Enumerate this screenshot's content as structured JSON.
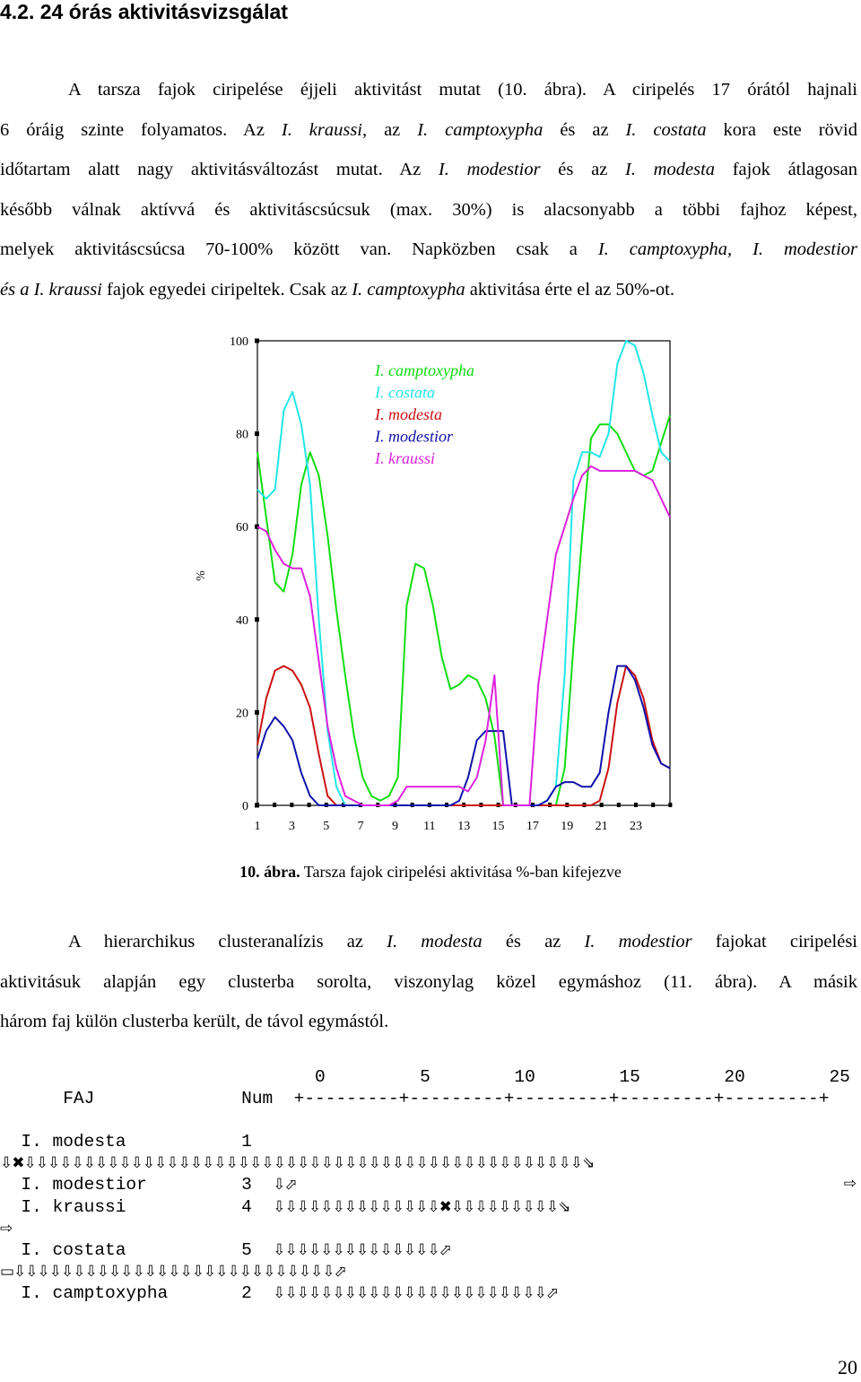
{
  "heading": "4.2. 24 órás aktivitásvizsgálat",
  "para1": [
    [
      {
        "t": "A tarsza fajok ciripelése éjjeli aktivitást mutat (10. ábra). A ciripelés 17 órától hajnali"
      }
    ],
    [
      {
        "t": "6 óráig szinte folyamatos. Az "
      },
      {
        "t": "I. kraussi",
        "i": true
      },
      {
        "t": ", az "
      },
      {
        "t": "I. camptoxypha",
        "i": true
      },
      {
        "t": " és az "
      },
      {
        "t": "I. costata",
        "i": true
      },
      {
        "t": " kora este rövid"
      }
    ],
    [
      {
        "t": "időtartam alatt nagy aktivitásváltozást mutat. Az "
      },
      {
        "t": "I. modestior",
        "i": true
      },
      {
        "t": " és az "
      },
      {
        "t": "I. modesta",
        "i": true
      },
      {
        "t": " fajok átlagosan"
      }
    ],
    [
      {
        "t": "később válnak aktívvá és aktivitáscsúcsuk (max. 30%) is alacsonyabb a többi fajhoz képest,"
      }
    ],
    [
      {
        "t": "melyek aktivitáscsúcsa 70-100% között van.  Napközben csak a "
      },
      {
        "t": "I. camptoxypha, I. modestior",
        "i": true
      }
    ],
    [
      {
        "t": "és a I. kraussi",
        "i": true
      },
      {
        "t": " fajok egyedei ciripeltek. Csak az "
      },
      {
        "t": "I. camptoxypha",
        "i": true
      },
      {
        "t": " aktivitása érte el az 50%-ot."
      }
    ]
  ],
  "chart_data": {
    "type": "line",
    "ylabel": "%",
    "ylim": [
      0,
      100
    ],
    "yticks": [
      "0",
      "20",
      "40",
      "60",
      "80",
      "100"
    ],
    "xticks": [
      "1",
      "3",
      "5",
      "7",
      "9",
      "11",
      "13",
      "15",
      "17",
      "19",
      "21",
      "23"
    ],
    "x": [
      0,
      0.5,
      1,
      1.5,
      2,
      2.5,
      3,
      3.5,
      4,
      4.5,
      5,
      5.5,
      6,
      6.5,
      7,
      7.5,
      8,
      8.5,
      9,
      9.5,
      10,
      10.5,
      11,
      11.5,
      12,
      12.5,
      13,
      13.5,
      14,
      14.5,
      15,
      15.5,
      16,
      16.5,
      17,
      17.5,
      18,
      18.5,
      19,
      19.5,
      20,
      20.5,
      21,
      21.5,
      22,
      22.5,
      23,
      23.5
    ],
    "series": [
      {
        "name": "I. camptoxypha",
        "color": "#11dd11",
        "values": [
          76,
          62,
          48,
          46,
          54,
          69,
          76,
          71,
          58,
          42,
          28,
          15,
          6,
          2,
          1,
          2,
          6,
          43,
          52,
          51,
          43,
          32,
          25,
          26,
          28,
          27,
          23,
          15,
          0,
          0,
          0,
          0,
          0,
          0,
          0,
          8,
          34,
          58,
          79,
          82,
          82,
          80,
          76,
          72,
          71,
          72,
          78,
          84
        ]
      },
      {
        "name": "I. costata",
        "color": "#22e6e6",
        "values": [
          68,
          66,
          68,
          85,
          89,
          82,
          69,
          40,
          16,
          4,
          0,
          0,
          0,
          0,
          0,
          0,
          0,
          0,
          0,
          0,
          0,
          0,
          0,
          0,
          0,
          0,
          0,
          0,
          0,
          0,
          0,
          0,
          0,
          1,
          4,
          28,
          70,
          76,
          76,
          75,
          80,
          95,
          100,
          99,
          93,
          84,
          76,
          74
        ]
      },
      {
        "name": "I. modesta",
        "color": "#cc1111",
        "values": [
          13,
          23,
          29,
          30,
          29,
          26,
          21,
          11,
          2,
          0,
          0,
          0,
          0,
          0,
          0,
          0,
          0,
          0,
          0,
          0,
          0,
          0,
          0,
          0,
          0,
          0,
          0,
          0,
          0,
          0,
          0,
          0,
          0,
          0,
          0,
          0,
          0,
          0,
          0,
          1,
          8,
          22,
          30,
          28,
          23,
          14,
          9,
          8
        ]
      },
      {
        "name": "I. modestior",
        "color": "#1111aa",
        "values": [
          10,
          16,
          19,
          17,
          14,
          7,
          2,
          0,
          0,
          0,
          0,
          0,
          0,
          0,
          0,
          0,
          0,
          0,
          0,
          0,
          0,
          0,
          0,
          1,
          6,
          14,
          16,
          16,
          16,
          0,
          0,
          0,
          0,
          1,
          4,
          5,
          5,
          4,
          4,
          7,
          20,
          30,
          30,
          27,
          21,
          13,
          9,
          8
        ]
      },
      {
        "name": "I. kraussi",
        "color": "#dd22dd",
        "values": [
          60,
          59,
          55,
          52,
          51,
          51,
          45,
          31,
          17,
          8,
          2,
          1,
          0,
          0,
          0,
          0,
          1,
          4,
          4,
          4,
          4,
          4,
          4,
          4,
          3,
          6,
          14,
          28,
          0,
          0,
          0,
          0,
          26,
          40,
          54,
          60,
          66,
          71,
          73,
          72,
          72,
          72,
          72,
          72,
          71,
          70,
          66,
          62
        ]
      }
    ]
  },
  "caption": {
    "label": "10. ábra.",
    "text": " Tarsza fajok ciripelési aktivitása %-ban kifejezve"
  },
  "para2": [
    [
      {
        "t": "A hierarchikus clusteranalízis az "
      },
      {
        "t": "I. modesta",
        "i": true
      },
      {
        "t": " és az "
      },
      {
        "t": "I. modestior",
        "i": true
      },
      {
        "t": " fajokat ciripelési"
      }
    ],
    [
      {
        "t": "aktivitásuk alapján egy clusterba sorolta, viszonylag közel egymáshoz (11. ábra). A másik"
      }
    ],
    [
      {
        "t": "három faj külön clusterba került, de távol egymástól."
      }
    ]
  ],
  "dendro": {
    "scale": "                              0         5        10        15        20        25",
    "header": "      FAJ              Num  +---------+---------+---------+---------+---------+",
    "rows": [
      {
        "label": "  I. modesta           1"
      },
      {
        "arrows": "⇩✖⇩⇩⇩⇩⇩⇩⇩⇩⇩⇩⇩⇩⇩⇩⇩⇩⇩⇩⇩⇩⇩⇩⇩⇩⇩⇩⇩⇩⇩⇩⇩⇩⇩⇩⇩⇩⇩⇩⇩⇩⇩⇩⇩⇩⇩⇩⇩⇘"
      },
      {
        "label": "  I. modestior         3  ",
        "arrows": "⇩⬀",
        "right": "⇨"
      },
      {
        "label": "  I. kraussi           4  ",
        "arrows": "⇩⇩⇩⇩⇩⇩⇩⇩⇩⇩⇩⇩⇩⇩✖⇩⇩⇩⇩⇩⇩⇩⇩⇩⇘"
      },
      {
        "arrows": "⇨"
      },
      {
        "label": "  I. costata           5  ",
        "arrows": "⇩⇩⇩⇩⇩⇩⇩⇩⇩⇩⇩⇩⇩⇩⬀"
      },
      {
        "arrows": "▭⇩⇩⇩⇩⇩⇩⇩⇩⇩⇩⇩⇩⇩⇩⇩⇩⇩⇩⇩⇩⇩⇩⇩⇩⇩⇩⇩⬀"
      },
      {
        "label": "  I. camptoxypha       2  ",
        "arrows": "⇩⇩⇩⇩⇩⇩⇩⇩⇩⇩⇩⇩⇩⇩⇩⇩⇩⇩⇩⇩⇩⇩⇩⬀"
      }
    ]
  },
  "page_number": "20"
}
